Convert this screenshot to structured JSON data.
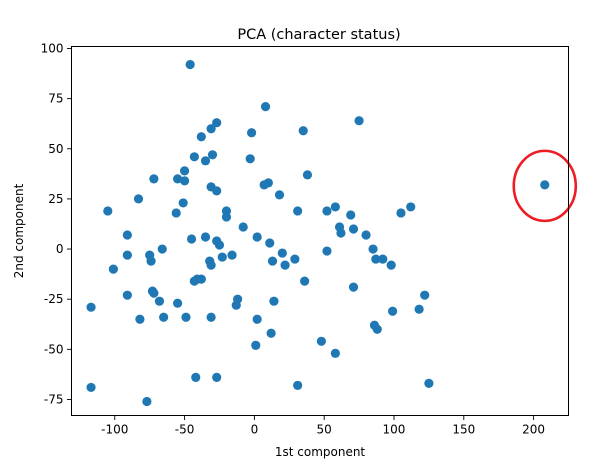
{
  "chart_data": {
    "type": "scatter",
    "title": "PCA (character status)",
    "xlabel": "1st component",
    "ylabel": "2nd component",
    "xlim": [
      -131,
      225
    ],
    "ylim": [
      -83,
      101
    ],
    "xticks": [
      -100,
      -50,
      0,
      50,
      100,
      150,
      200
    ],
    "yticks": [
      -75,
      -50,
      -25,
      0,
      25,
      50,
      75,
      100
    ],
    "grid": false,
    "colors": {
      "point": "#1f77b4",
      "highlight": "#ee1c24",
      "axis": "#000000"
    },
    "highlight": {
      "x": 208,
      "y": 31.5
    },
    "points": [
      {
        "x": -46,
        "y": 92
      },
      {
        "x": 8,
        "y": 71
      },
      {
        "x": 75,
        "y": 64
      },
      {
        "x": -27,
        "y": 63
      },
      {
        "x": -31,
        "y": 60
      },
      {
        "x": 35,
        "y": 59
      },
      {
        "x": -2,
        "y": 58
      },
      {
        "x": -38,
        "y": 56
      },
      {
        "x": -30,
        "y": 47
      },
      {
        "x": -43,
        "y": 46
      },
      {
        "x": -3,
        "y": 45
      },
      {
        "x": -35,
        "y": 44
      },
      {
        "x": -50,
        "y": 39
      },
      {
        "x": 38,
        "y": 37
      },
      {
        "x": -72,
        "y": 35
      },
      {
        "x": -55,
        "y": 35
      },
      {
        "x": -50,
        "y": 34
      },
      {
        "x": 10,
        "y": 33
      },
      {
        "x": 7,
        "y": 32
      },
      {
        "x": 208,
        "y": 32
      },
      {
        "x": -31,
        "y": 31
      },
      {
        "x": -27,
        "y": 29
      },
      {
        "x": 18,
        "y": 27
      },
      {
        "x": -83,
        "y": 25
      },
      {
        "x": -51,
        "y": 23
      },
      {
        "x": 112,
        "y": 21
      },
      {
        "x": 58,
        "y": 21
      },
      {
        "x": -105,
        "y": 19
      },
      {
        "x": 31,
        "y": 19
      },
      {
        "x": 52,
        "y": 19
      },
      {
        "x": -20,
        "y": 19
      },
      {
        "x": -56,
        "y": 18
      },
      {
        "x": 105,
        "y": 18
      },
      {
        "x": 69,
        "y": 17
      },
      {
        "x": -20,
        "y": 16
      },
      {
        "x": -8,
        "y": 11
      },
      {
        "x": 61,
        "y": 11
      },
      {
        "x": 71,
        "y": 10
      },
      {
        "x": 62,
        "y": 8
      },
      {
        "x": 80,
        "y": 7
      },
      {
        "x": -91,
        "y": 7
      },
      {
        "x": 2,
        "y": 6
      },
      {
        "x": -35,
        "y": 6
      },
      {
        "x": -45,
        "y": 5
      },
      {
        "x": -27,
        "y": 4
      },
      {
        "x": 11,
        "y": 3
      },
      {
        "x": -25,
        "y": 2
      },
      {
        "x": -66,
        "y": 0
      },
      {
        "x": 52,
        "y": -1
      },
      {
        "x": 20,
        "y": -2
      },
      {
        "x": -75,
        "y": -3
      },
      {
        "x": -91,
        "y": -3
      },
      {
        "x": -16,
        "y": -3
      },
      {
        "x": -23,
        "y": -4
      },
      {
        "x": 85,
        "y": 0
      },
      {
        "x": 87,
        "y": -5
      },
      {
        "x": 92,
        "y": -5
      },
      {
        "x": 29,
        "y": -5
      },
      {
        "x": 13,
        "y": -6
      },
      {
        "x": -74,
        "y": -6
      },
      {
        "x": -32,
        "y": -6
      },
      {
        "x": 22,
        "y": -8
      },
      {
        "x": -31,
        "y": -8
      },
      {
        "x": 98,
        "y": -8
      },
      {
        "x": -101,
        "y": -10
      },
      {
        "x": -38,
        "y": -15
      },
      {
        "x": -41,
        "y": -15
      },
      {
        "x": -43,
        "y": -16
      },
      {
        "x": 36,
        "y": -16
      },
      {
        "x": 71,
        "y": -19
      },
      {
        "x": -73,
        "y": -21
      },
      {
        "x": -72,
        "y": -22
      },
      {
        "x": -91,
        "y": -23
      },
      {
        "x": 122,
        "y": -23
      },
      {
        "x": -68,
        "y": -26
      },
      {
        "x": -12,
        "y": -25
      },
      {
        "x": 14,
        "y": -26
      },
      {
        "x": -55,
        "y": -27
      },
      {
        "x": -13,
        "y": -28
      },
      {
        "x": -117,
        "y": -29
      },
      {
        "x": 118,
        "y": -30
      },
      {
        "x": 99,
        "y": -31
      },
      {
        "x": -65,
        "y": -34
      },
      {
        "x": -49,
        "y": -34
      },
      {
        "x": -31,
        "y": -34
      },
      {
        "x": 2,
        "y": -35
      },
      {
        "x": -82,
        "y": -35
      },
      {
        "x": 86,
        "y": -38
      },
      {
        "x": 88,
        "y": -40
      },
      {
        "x": 12,
        "y": -42
      },
      {
        "x": 48,
        "y": -46
      },
      {
        "x": 1,
        "y": -48
      },
      {
        "x": 58,
        "y": -52
      },
      {
        "x": -42,
        "y": -64
      },
      {
        "x": -27,
        "y": -64
      },
      {
        "x": 125,
        "y": -67
      },
      {
        "x": 31,
        "y": -68
      },
      {
        "x": -117,
        "y": -69
      },
      {
        "x": -77,
        "y": -76
      }
    ]
  }
}
